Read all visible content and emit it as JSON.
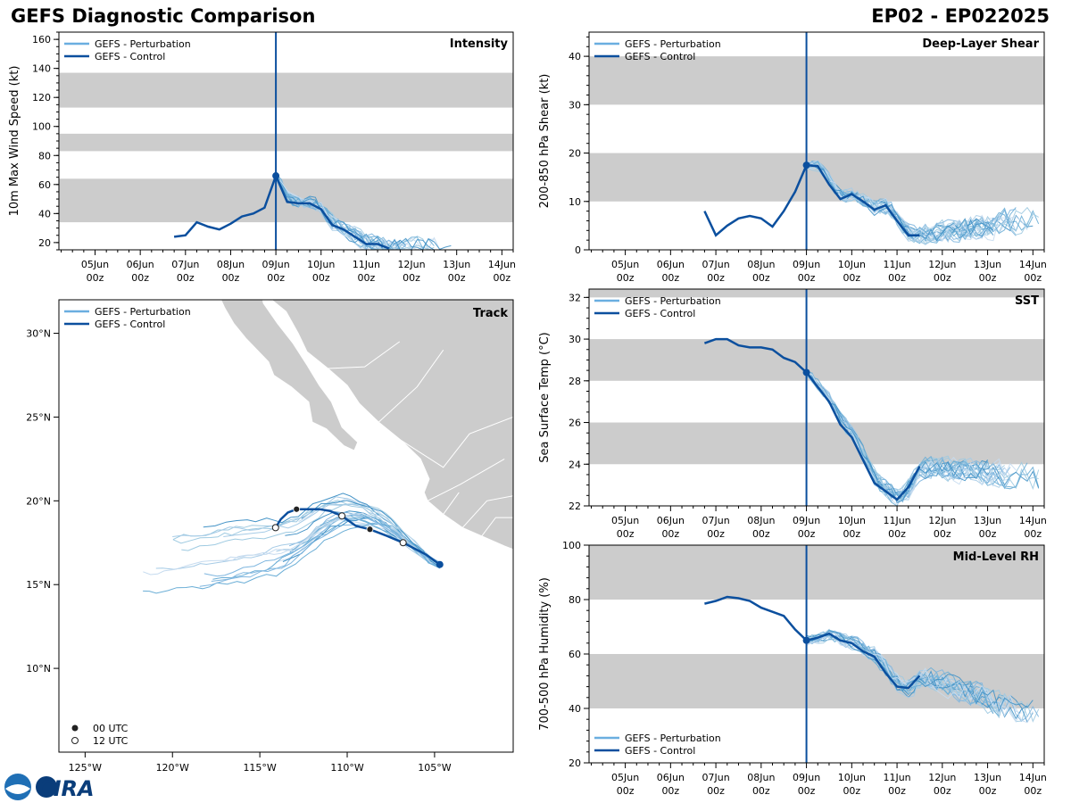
{
  "header": {
    "title": "GEFS Diagnostic Comparison",
    "storm": "EP02 - EP022025"
  },
  "colors": {
    "control": "#0b4f9e",
    "perturbation": "#6aaee0",
    "band": "#cccccc",
    "land": "#cccccc",
    "init": "#0b4f9e"
  },
  "legend": {
    "perturbation": "GEFS - Perturbation",
    "control": "GEFS - Control",
    "utc00": "00 UTC",
    "utc12": "12 UTC"
  },
  "time_axis": {
    "labels": [
      [
        "05Jun",
        "00z"
      ],
      [
        "06Jun",
        "00z"
      ],
      [
        "07Jun",
        "00z"
      ],
      [
        "08Jun",
        "00z"
      ],
      [
        "09Jun",
        "00z"
      ],
      [
        "10Jun",
        "00z"
      ],
      [
        "11Jun",
        "00z"
      ],
      [
        "12Jun",
        "00z"
      ],
      [
        "13Jun",
        "00z"
      ],
      [
        "14Jun",
        "00z"
      ]
    ],
    "range_days": [
      4.2,
      14.25
    ],
    "init_day": 9.0
  },
  "logo": {
    "text": "CIRA"
  },
  "chart_data": [
    {
      "id": "intensity",
      "type": "line",
      "title": "Intensity",
      "ylabel": "10m Max Wind Speed (kt)",
      "ylim": [
        15,
        165
      ],
      "yticks": [
        20,
        40,
        60,
        80,
        100,
        120,
        140,
        160
      ],
      "bands": [
        [
          34,
          64
        ],
        [
          83,
          95
        ],
        [
          113,
          137
        ]
      ],
      "legend_position": "top-left",
      "control": {
        "x": [
          6.75,
          7.0,
          7.25,
          7.5,
          7.75,
          8.0,
          8.25,
          8.5,
          8.75,
          9.0,
          9.25,
          9.5,
          9.75,
          10.0,
          10.25,
          10.5,
          10.75,
          11.0,
          11.25,
          11.5
        ],
        "y": [
          24,
          25,
          34,
          31,
          29,
          33,
          38,
          40,
          44,
          66,
          48,
          47,
          47,
          43,
          32,
          29,
          24,
          19,
          19,
          16
        ]
      },
      "perturbation_end_day": 13.0,
      "perturbation_end_value": 16
    },
    {
      "id": "shear",
      "type": "line",
      "title": "Deep-Layer Shear",
      "ylabel": "200-850 hPa Shear (kt)",
      "ylim": [
        0,
        45
      ],
      "yticks": [
        0,
        10,
        20,
        30,
        40
      ],
      "bands": [
        [
          10,
          20
        ],
        [
          30,
          40
        ]
      ],
      "legend_position": "top-left",
      "control": {
        "x": [
          6.75,
          7.0,
          7.25,
          7.5,
          7.75,
          8.0,
          8.25,
          8.5,
          8.75,
          9.0,
          9.25,
          9.5,
          9.75,
          10.0,
          10.25,
          10.5,
          10.75,
          11.0,
          11.25,
          11.5
        ],
        "y": [
          8,
          3,
          5,
          6.5,
          7,
          6.5,
          4.8,
          8,
          12,
          17.5,
          17.3,
          13.5,
          10.5,
          11.5,
          10,
          8.3,
          9.2,
          6,
          3,
          3
        ]
      },
      "perturbation_end_day": 14.25,
      "perturbation_end_value": 7
    },
    {
      "id": "sst",
      "type": "line",
      "title": "SST",
      "ylabel": "Sea Surface Temp (°C)",
      "ylim": [
        22,
        32.4
      ],
      "yticks": [
        22,
        24,
        26,
        28,
        30,
        32
      ],
      "bands": [
        [
          24,
          26
        ],
        [
          28,
          30
        ],
        [
          32,
          32.4
        ]
      ],
      "legend_position": "top-left",
      "control": {
        "x": [
          6.75,
          7.0,
          7.25,
          7.5,
          7.75,
          8.0,
          8.25,
          8.5,
          8.75,
          9.0,
          9.25,
          9.5,
          9.75,
          10.0,
          10.25,
          10.5,
          10.75,
          11.0,
          11.25,
          11.5
        ],
        "y": [
          29.8,
          30.0,
          30.0,
          29.7,
          29.6,
          29.6,
          29.5,
          29.1,
          28.9,
          28.4,
          27.7,
          27.0,
          25.9,
          25.3,
          24.2,
          23.1,
          22.7,
          22.3,
          22.9,
          23.9
        ]
      },
      "perturbation_end_day": 14.25,
      "perturbation_end_value": 23.3
    },
    {
      "id": "rh",
      "type": "line",
      "title": "Mid-Level RH",
      "ylabel": "700-500 hPa Humidity (%)",
      "ylim": [
        20,
        100
      ],
      "yticks": [
        20,
        40,
        60,
        80,
        100
      ],
      "bands": [
        [
          40,
          60
        ],
        [
          80,
          100
        ]
      ],
      "legend_position": "bottom-left",
      "control": {
        "x": [
          6.75,
          7.0,
          7.25,
          7.5,
          7.75,
          8.0,
          8.25,
          8.5,
          8.75,
          9.0,
          9.25,
          9.5,
          9.75,
          10.0,
          10.25,
          10.5,
          10.75,
          11.0,
          11.25,
          11.5
        ],
        "y": [
          78.5,
          79.5,
          81,
          80.5,
          79.5,
          77,
          75.5,
          74,
          69,
          65,
          66,
          67.5,
          65,
          64,
          61,
          59,
          53,
          48,
          47.5,
          52
        ]
      },
      "perturbation_end_day": 14.25,
      "perturbation_end_value": 36
    },
    {
      "id": "track",
      "type": "scatter",
      "title": "Track",
      "xlim": [
        -126.5,
        -100.5
      ],
      "ylim": [
        5,
        32
      ],
      "xticks": [
        -125,
        -120,
        -115,
        -110,
        -105
      ],
      "xticklabels": [
        "125°W",
        "120°W",
        "115°W",
        "110°W",
        "105°W"
      ],
      "yticks": [
        10,
        15,
        20,
        25,
        30
      ],
      "yticklabels": [
        "10°N",
        "15°N",
        "20°N",
        "25°N",
        "30°N"
      ],
      "legend_position": "top-left",
      "control": {
        "lon": [
          -104.7,
          -105.5,
          -106.8,
          -107.7,
          -108.7,
          -109.5,
          -110.3,
          -111.0,
          -111.6,
          -112.2,
          -112.9,
          -113.4,
          -113.8,
          -114.1
        ],
        "lat": [
          16.2,
          16.8,
          17.5,
          17.9,
          18.3,
          18.5,
          19.1,
          19.4,
          19.5,
          19.5,
          19.5,
          19.3,
          18.9,
          18.4
        ]
      },
      "markers_00utc": [
        [
          -104.7,
          16.2
        ],
        [
          -108.7,
          18.3
        ],
        [
          -112.9,
          19.5
        ]
      ],
      "markers_12utc": [
        [
          -106.8,
          17.5
        ],
        [
          -110.3,
          19.1
        ],
        [
          -114.1,
          18.4
        ]
      ]
    }
  ]
}
